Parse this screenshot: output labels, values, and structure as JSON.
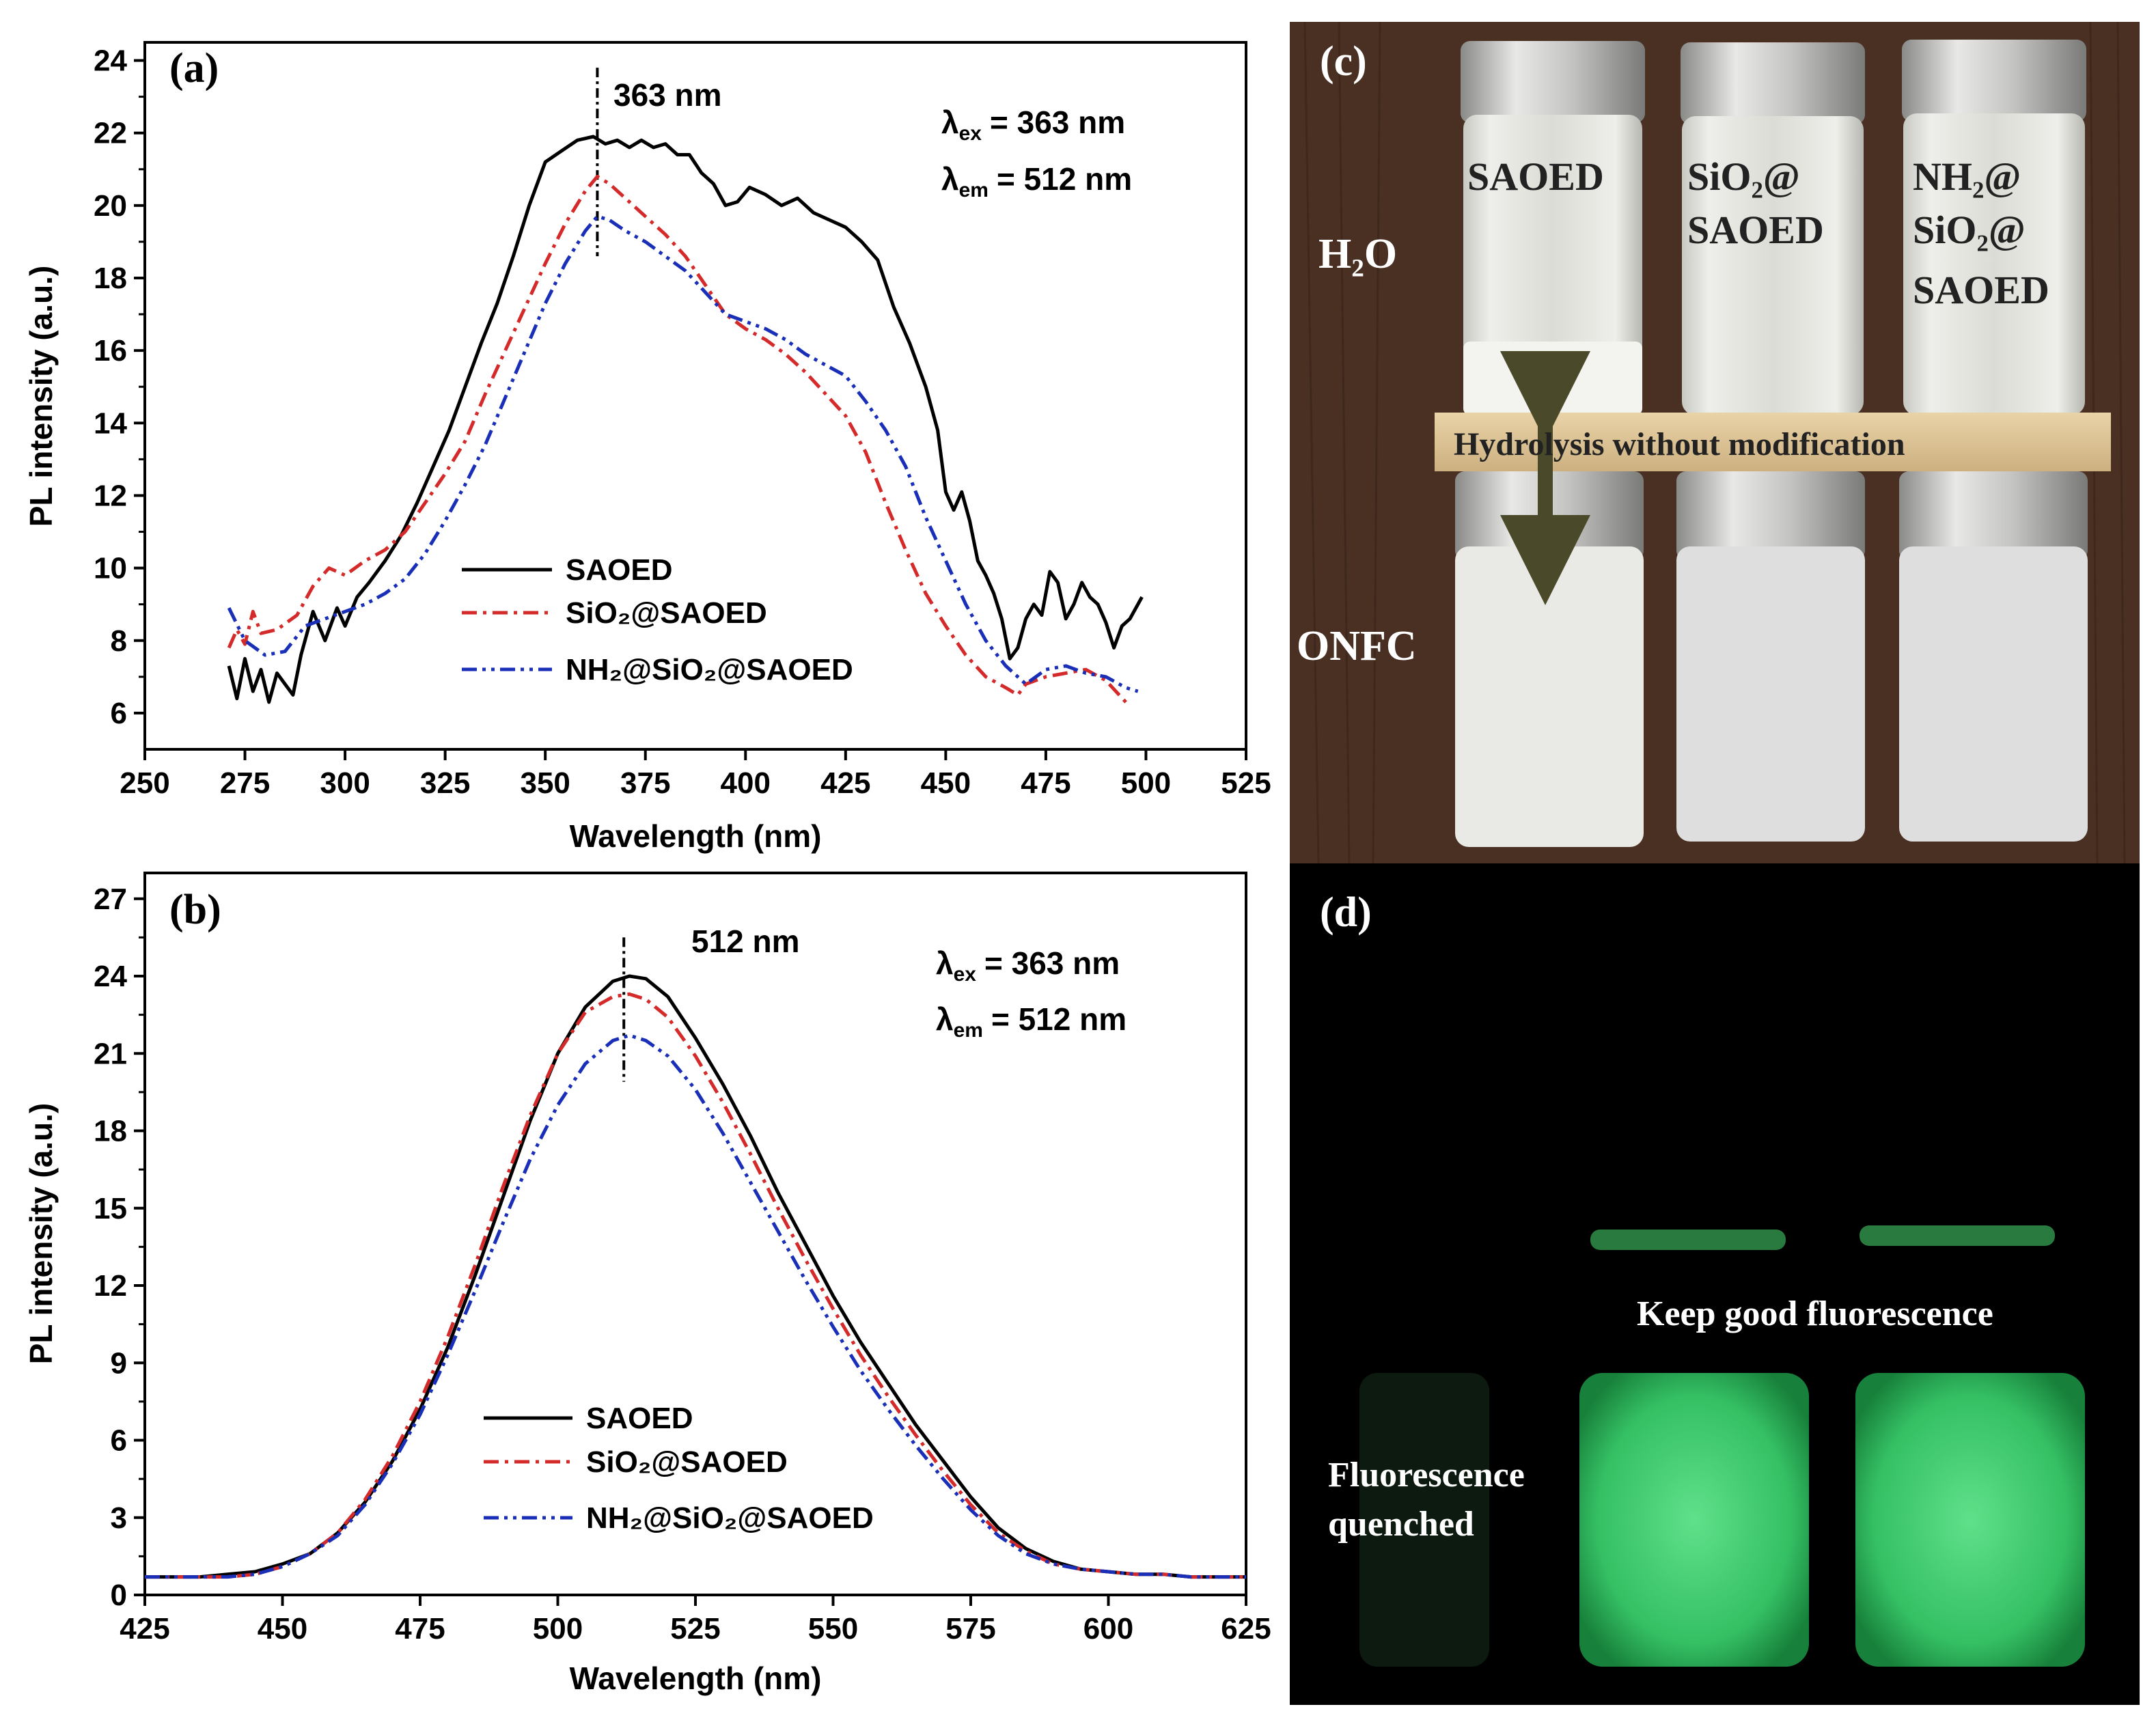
{
  "colors": {
    "SAOED": "#000000",
    "SiO2@SAOED": "#d42a2a",
    "NH2@SiO2@SAOED": "#1a2fb8",
    "wood": "#4a3022",
    "glow": "#35c064"
  },
  "chart_data": [
    {
      "panel": "(a)",
      "type": "line",
      "title": "",
      "xlabel": "Wavelength (nm)",
      "ylabel": "PL intensity (a.u.)",
      "xlim": [
        250,
        525
      ],
      "ylim": [
        5,
        24.5
      ],
      "xticks": [
        250,
        275,
        300,
        325,
        350,
        375,
        400,
        425,
        450,
        475,
        500,
        525
      ],
      "yticks": [
        6,
        8,
        10,
        12,
        14,
        16,
        18,
        20,
        22,
        24
      ],
      "grid": false,
      "legend_position": "lower-center",
      "peak_marker": {
        "x": 363,
        "label": "363 nm"
      },
      "annotations": [
        {
          "sym": "λ",
          "sub": "ex",
          "text": "= 363 nm"
        },
        {
          "sym": "λ",
          "sub": "em",
          "text": "= 512 nm"
        }
      ],
      "series": [
        {
          "name": "SAOED",
          "label": "SAOED",
          "style": "solid",
          "x": [
            271,
            273,
            275,
            277,
            279,
            281,
            283,
            285,
            287,
            289,
            292,
            295,
            298,
            300,
            303,
            306,
            310,
            314,
            318,
            322,
            326,
            330,
            334,
            338,
            342,
            346,
            350,
            354,
            358,
            362,
            365,
            368,
            371,
            374,
            377,
            380,
            383,
            386,
            389,
            392,
            395,
            398,
            401,
            405,
            409,
            413,
            417,
            421,
            425,
            429,
            433,
            437,
            441,
            445,
            448,
            450,
            452,
            454,
            456,
            458,
            460,
            462,
            464,
            466,
            468,
            470,
            472,
            474,
            476,
            478,
            480,
            482,
            484,
            486,
            488,
            490,
            492,
            494,
            496,
            499
          ],
          "y": [
            7.3,
            6.4,
            7.5,
            6.6,
            7.2,
            6.3,
            7.1,
            6.8,
            6.5,
            7.6,
            8.8,
            8.0,
            8.9,
            8.4,
            9.2,
            9.6,
            10.2,
            10.9,
            11.8,
            12.8,
            13.8,
            15.0,
            16.2,
            17.3,
            18.6,
            20.0,
            21.2,
            21.5,
            21.8,
            21.9,
            21.7,
            21.8,
            21.6,
            21.8,
            21.6,
            21.7,
            21.4,
            21.4,
            20.9,
            20.6,
            20.0,
            20.1,
            20.5,
            20.3,
            20.0,
            20.2,
            19.8,
            19.6,
            19.4,
            19.0,
            18.5,
            17.2,
            16.2,
            15.0,
            13.8,
            12.1,
            11.6,
            12.1,
            11.3,
            10.2,
            9.8,
            9.3,
            8.6,
            7.5,
            7.8,
            8.6,
            9.0,
            8.7,
            9.9,
            9.6,
            8.6,
            9.0,
            9.6,
            9.2,
            9.0,
            8.5,
            7.8,
            8.4,
            8.6,
            9.2
          ]
        },
        {
          "name": "SiO2@SAOED",
          "label": "SiO₂@SAOED",
          "style": "dash-dot",
          "x": [
            271,
            273,
            275,
            277,
            279,
            283,
            288,
            292,
            296,
            300,
            305,
            310,
            315,
            320,
            325,
            330,
            335,
            340,
            345,
            350,
            355,
            360,
            363,
            366,
            370,
            375,
            380,
            385,
            390,
            395,
            400,
            405,
            410,
            415,
            420,
            425,
            430,
            435,
            440,
            445,
            450,
            455,
            460,
            465,
            468,
            470,
            475,
            480,
            485,
            490,
            495
          ],
          "y": [
            7.8,
            8.3,
            7.9,
            8.8,
            8.2,
            8.3,
            8.7,
            9.5,
            10.0,
            9.8,
            10.2,
            10.5,
            11.0,
            11.8,
            12.6,
            13.5,
            14.8,
            16.0,
            17.2,
            18.4,
            19.5,
            20.4,
            20.8,
            20.6,
            20.2,
            19.7,
            19.2,
            18.6,
            17.8,
            17.0,
            16.6,
            16.3,
            15.9,
            15.4,
            14.8,
            14.2,
            13.2,
            11.8,
            10.5,
            9.3,
            8.4,
            7.6,
            7.0,
            6.7,
            6.5,
            6.8,
            7.0,
            7.1,
            7.2,
            6.9,
            6.3
          ]
        },
        {
          "name": "NH2@SiO2@SAOED",
          "label": "NH₂@SiO₂@SAOED",
          "style": "dash-dot-dot",
          "x": [
            271,
            275,
            280,
            285,
            290,
            295,
            300,
            305,
            310,
            315,
            320,
            325,
            330,
            335,
            340,
            345,
            350,
            355,
            360,
            363,
            366,
            370,
            375,
            380,
            385,
            390,
            395,
            400,
            405,
            410,
            415,
            420,
            425,
            430,
            435,
            440,
            445,
            450,
            455,
            460,
            465,
            470,
            475,
            480,
            485,
            490,
            495,
            498
          ],
          "y": [
            8.9,
            8.0,
            7.6,
            7.7,
            8.4,
            8.6,
            8.8,
            9.0,
            9.3,
            9.7,
            10.4,
            11.3,
            12.3,
            13.4,
            14.7,
            16.0,
            17.3,
            18.4,
            19.3,
            19.7,
            19.6,
            19.3,
            19.0,
            18.6,
            18.2,
            17.6,
            17.0,
            16.8,
            16.6,
            16.3,
            15.9,
            15.6,
            15.3,
            14.6,
            13.8,
            12.8,
            11.4,
            10.2,
            9.0,
            8.0,
            7.3,
            6.8,
            7.2,
            7.3,
            7.1,
            7.0,
            6.7,
            6.6
          ]
        }
      ]
    },
    {
      "panel": "(b)",
      "type": "line",
      "title": "",
      "xlabel": "Wavelength (nm)",
      "ylabel": "PL intensity (a.u.)",
      "xlim": [
        425,
        625
      ],
      "ylim": [
        0,
        28
      ],
      "xticks": [
        425,
        450,
        475,
        500,
        525,
        550,
        575,
        600,
        625
      ],
      "yticks": [
        0,
        3,
        6,
        9,
        12,
        15,
        18,
        21,
        24,
        27
      ],
      "grid": false,
      "legend_position": "lower-center",
      "peak_marker": {
        "x": 512,
        "label": "512 nm"
      },
      "annotations": [
        {
          "sym": "λ",
          "sub": "ex",
          "text": "= 363 nm"
        },
        {
          "sym": "λ",
          "sub": "em",
          "text": "= 512 nm"
        }
      ],
      "series": [
        {
          "name": "SAOED",
          "label": "SAOED",
          "style": "solid",
          "x": [
            425,
            430,
            435,
            440,
            445,
            450,
            455,
            460,
            465,
            470,
            475,
            480,
            485,
            490,
            495,
            500,
            505,
            510,
            513,
            516,
            520,
            525,
            530,
            535,
            540,
            545,
            550,
            555,
            560,
            565,
            570,
            575,
            580,
            585,
            590,
            595,
            600,
            605,
            610,
            615,
            620,
            625
          ],
          "y": [
            0.7,
            0.7,
            0.7,
            0.8,
            0.9,
            1.2,
            1.6,
            2.4,
            3.6,
            5.2,
            7.2,
            9.6,
            12.4,
            15.4,
            18.4,
            21.0,
            22.8,
            23.8,
            24.0,
            23.9,
            23.2,
            21.6,
            19.8,
            17.8,
            15.6,
            13.6,
            11.6,
            9.8,
            8.2,
            6.6,
            5.2,
            3.8,
            2.6,
            1.8,
            1.3,
            1.0,
            0.9,
            0.8,
            0.8,
            0.7,
            0.7,
            0.7
          ]
        },
        {
          "name": "SiO2@SAOED",
          "label": "SiO₂@SAOED",
          "style": "dash-dot",
          "x": [
            425,
            430,
            435,
            440,
            445,
            450,
            455,
            460,
            465,
            470,
            475,
            480,
            485,
            490,
            495,
            500,
            505,
            510,
            513,
            516,
            520,
            525,
            530,
            535,
            540,
            545,
            550,
            555,
            560,
            565,
            570,
            575,
            580,
            585,
            590,
            595,
            600,
            605,
            610,
            615,
            620,
            625
          ],
          "y": [
            0.7,
            0.7,
            0.7,
            0.7,
            0.8,
            1.1,
            1.6,
            2.4,
            3.7,
            5.4,
            7.5,
            10.0,
            12.8,
            15.8,
            18.6,
            21.0,
            22.6,
            23.2,
            23.3,
            23.1,
            22.4,
            20.9,
            19.1,
            17.1,
            15.0,
            13.0,
            11.1,
            9.3,
            7.7,
            6.2,
            4.8,
            3.5,
            2.4,
            1.7,
            1.2,
            1.0,
            0.9,
            0.8,
            0.8,
            0.7,
            0.7,
            0.7
          ]
        },
        {
          "name": "NH2@SiO2@SAOED",
          "label": "NH₂@SiO₂@SAOED",
          "style": "dash-dot-dot",
          "x": [
            425,
            430,
            435,
            440,
            445,
            450,
            455,
            460,
            465,
            470,
            475,
            480,
            485,
            490,
            495,
            500,
            505,
            510,
            513,
            516,
            520,
            525,
            530,
            535,
            540,
            545,
            550,
            555,
            560,
            565,
            570,
            575,
            580,
            585,
            590,
            595,
            600,
            605,
            610,
            615,
            620,
            625
          ],
          "y": [
            0.7,
            0.7,
            0.7,
            0.7,
            0.8,
            1.1,
            1.6,
            2.3,
            3.5,
            5.1,
            7.0,
            9.3,
            11.8,
            14.4,
            16.9,
            19.0,
            20.6,
            21.5,
            21.7,
            21.5,
            20.9,
            19.6,
            17.9,
            16.0,
            14.1,
            12.2,
            10.4,
            8.7,
            7.2,
            5.8,
            4.5,
            3.3,
            2.3,
            1.6,
            1.2,
            1.0,
            0.9,
            0.8,
            0.8,
            0.7,
            0.7,
            0.7
          ]
        }
      ]
    }
  ],
  "photo_c": {
    "panel": "(c)",
    "row_top_label": "H₂O",
    "row_bottom_label": "ONFC",
    "vial1": [
      "SAOED"
    ],
    "vial2": [
      "SiO₂@",
      "SAOED"
    ],
    "vial3": [
      "NH₂@",
      "SiO₂@",
      "SAOED"
    ],
    "shelf_label": "Hydrolysis without modification"
  },
  "photo_d": {
    "panel": "(d)",
    "keep_label": "Keep good fluorescence",
    "quenched_label": [
      "Fluorescence",
      "quenched"
    ]
  }
}
